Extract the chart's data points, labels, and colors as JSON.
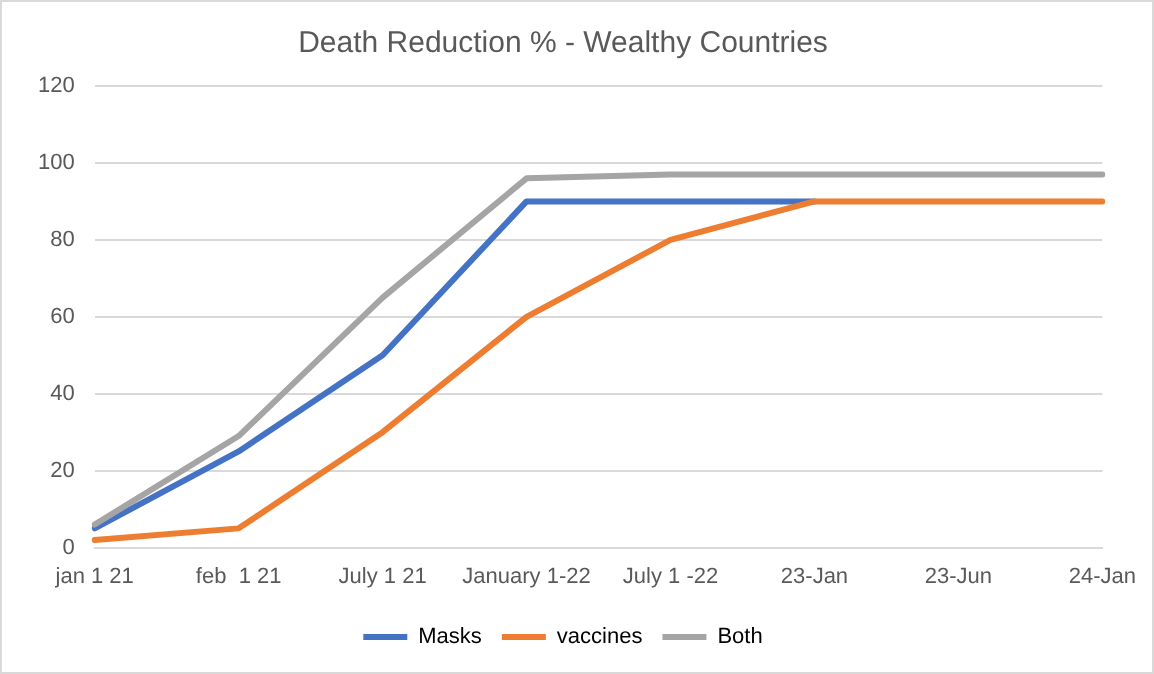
{
  "chart_data": {
    "type": "line",
    "title": "Death Reduction % - Wealthy Countries",
    "categories": [
      "jan 1 21",
      "feb  1 21",
      "July 1 21",
      "January 1-22",
      "July 1 -22",
      "23-Jan",
      "23-Jun",
      "24-Jan"
    ],
    "series": [
      {
        "name": "Masks",
        "color": "#4472c4",
        "values": [
          5,
          25,
          50,
          90,
          90,
          90,
          null,
          null
        ]
      },
      {
        "name": "vaccines",
        "color": "#ed7d31",
        "values": [
          2,
          5,
          30,
          60,
          80,
          90,
          90,
          90
        ]
      },
      {
        "name": "Both",
        "color": "#a5a5a5",
        "values": [
          6,
          29,
          65,
          96,
          97,
          97,
          97,
          97
        ]
      }
    ],
    "ylim": [
      0,
      120
    ],
    "yticks": [
      0,
      20,
      40,
      60,
      80,
      100,
      120
    ],
    "grid": "y",
    "legend": "bottom",
    "marker": "none",
    "line_style": "solid"
  }
}
